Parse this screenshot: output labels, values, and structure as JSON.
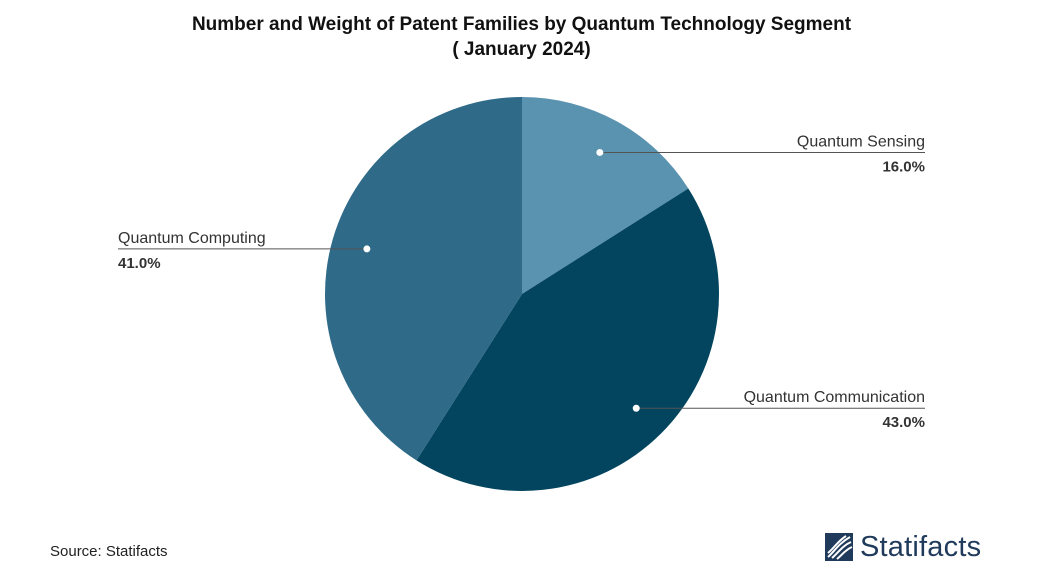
{
  "chart_data": {
    "type": "pie",
    "title_line1": "Number and Weight of Patent Families by Quantum Technology Segment",
    "title_line2": "( January 2024)",
    "slices": [
      {
        "name": "Quantum Sensing",
        "value": 16.0,
        "label": "16.0%",
        "color": "#5a93b0"
      },
      {
        "name": "Quantum Communication",
        "value": 43.0,
        "label": "43.0%",
        "color": "#03455f"
      },
      {
        "name": "Quantum Computing",
        "value": 41.0,
        "label": "41.0%",
        "color": "#2f6b89"
      }
    ],
    "start": "12 o'clock",
    "direction": "clockwise"
  },
  "footer": {
    "source": "Source: Statifacts",
    "logo_text": "Statifacts"
  }
}
